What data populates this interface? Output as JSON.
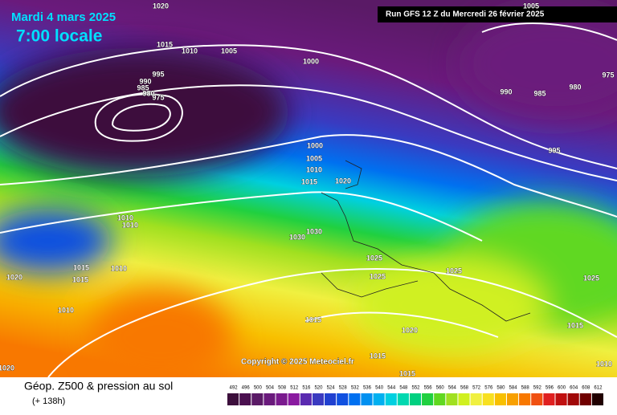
{
  "header": {
    "date": "Mardi 4 mars 2025",
    "time": "7:00 locale",
    "run": "Run GFS 12 Z du Mercredi 26 février 2025"
  },
  "copyright": "Copyright © 2025 Meteociel.fr",
  "footer": {
    "title": "Géop. Z500 & pression au sol",
    "lead": "(+ 138h)"
  },
  "scale": {
    "labels": [
      492,
      496,
      500,
      504,
      508,
      512,
      516,
      520,
      524,
      528,
      532,
      536,
      540,
      544,
      548,
      552,
      556,
      560,
      564,
      568,
      572,
      576,
      580,
      584,
      588,
      592,
      596,
      600,
      604,
      608,
      612
    ],
    "colors": [
      "#3c0f3c",
      "#4b1050",
      "#5a1a66",
      "#6a1a7c",
      "#7a1a8e",
      "#8a1aa0",
      "#5a2ab0",
      "#3a3ac0",
      "#2040d0",
      "#1050e0",
      "#0070f0",
      "#0090f0",
      "#00b0f0",
      "#00d0e0",
      "#00d8b0",
      "#00d080",
      "#20d040",
      "#60d820",
      "#a0e020",
      "#d0f020",
      "#f0f040",
      "#f8e020",
      "#f8c000",
      "#f8a000",
      "#f87800",
      "#f05010",
      "#e02020",
      "#c01010",
      "#a00808",
      "#700000",
      "#200000"
    ]
  },
  "isobars": [
    "1020",
    "1015",
    "1010",
    "1005",
    "1000",
    "995",
    "990",
    "985",
    "980",
    "975",
    "990",
    "985",
    "980",
    "975",
    "1005",
    "995",
    "1000",
    "1005",
    "1010",
    "1015",
    "1020",
    "1010",
    "1010",
    "1030",
    "1030",
    "1015",
    "1015",
    "1010",
    "1020",
    "1025",
    "1025",
    "1025",
    "1025",
    "1010",
    "1015",
    "1020",
    "1015",
    "1015",
    "1015",
    "1010",
    "1020"
  ]
}
